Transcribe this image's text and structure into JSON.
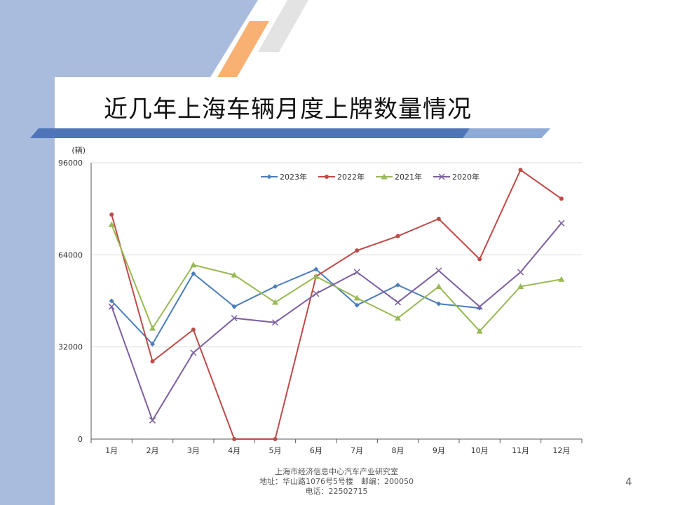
{
  "slide": {
    "title": "近几年上海车辆月度上牌数量情况",
    "page_number": "4",
    "footer": [
      "上海市经济信息中心汽车产业研究室",
      "地址：华山路1076号5号楼　邮编：200050",
      "电话：22502715"
    ],
    "colors": {
      "left_band": "#a9bcdd",
      "title_bar": "#4f74b7",
      "stripe_orange": "#f8b173",
      "stripe_grey": "#e3e3e3"
    }
  },
  "chart_data": {
    "type": "line",
    "unit_label": "(辆)",
    "categories": [
      "1月",
      "2月",
      "3月",
      "4月",
      "5月",
      "6月",
      "7月",
      "8月",
      "9月",
      "10月",
      "11月",
      "12月"
    ],
    "y_ticks": [
      0,
      32000,
      64000,
      96000
    ],
    "ylim": [
      0,
      96000
    ],
    "grid": true,
    "legend_position": "top",
    "series": [
      {
        "name": "2023年",
        "color": "#4a7ebb",
        "marker": "diamond",
        "values": [
          48000,
          33000,
          57500,
          46000,
          53000,
          59000,
          46500,
          53500,
          47000,
          45500,
          null,
          null
        ]
      },
      {
        "name": "2022年",
        "color": "#be4b48",
        "marker": "circle",
        "values": [
          78000,
          27000,
          38000,
          0,
          0,
          56500,
          65500,
          70500,
          76500,
          62500,
          93500,
          83500
        ]
      },
      {
        "name": "2021年",
        "color": "#98b954",
        "marker": "triangle",
        "values": [
          74500,
          38500,
          60500,
          57000,
          47500,
          56500,
          49000,
          42000,
          53000,
          37500,
          53000,
          55500
        ]
      },
      {
        "name": "2020年",
        "color": "#7d60a0",
        "marker": "x",
        "values": [
          46000,
          6500,
          30000,
          42000,
          40500,
          50500,
          58000,
          47500,
          58500,
          46000,
          58000,
          75000
        ]
      }
    ]
  }
}
